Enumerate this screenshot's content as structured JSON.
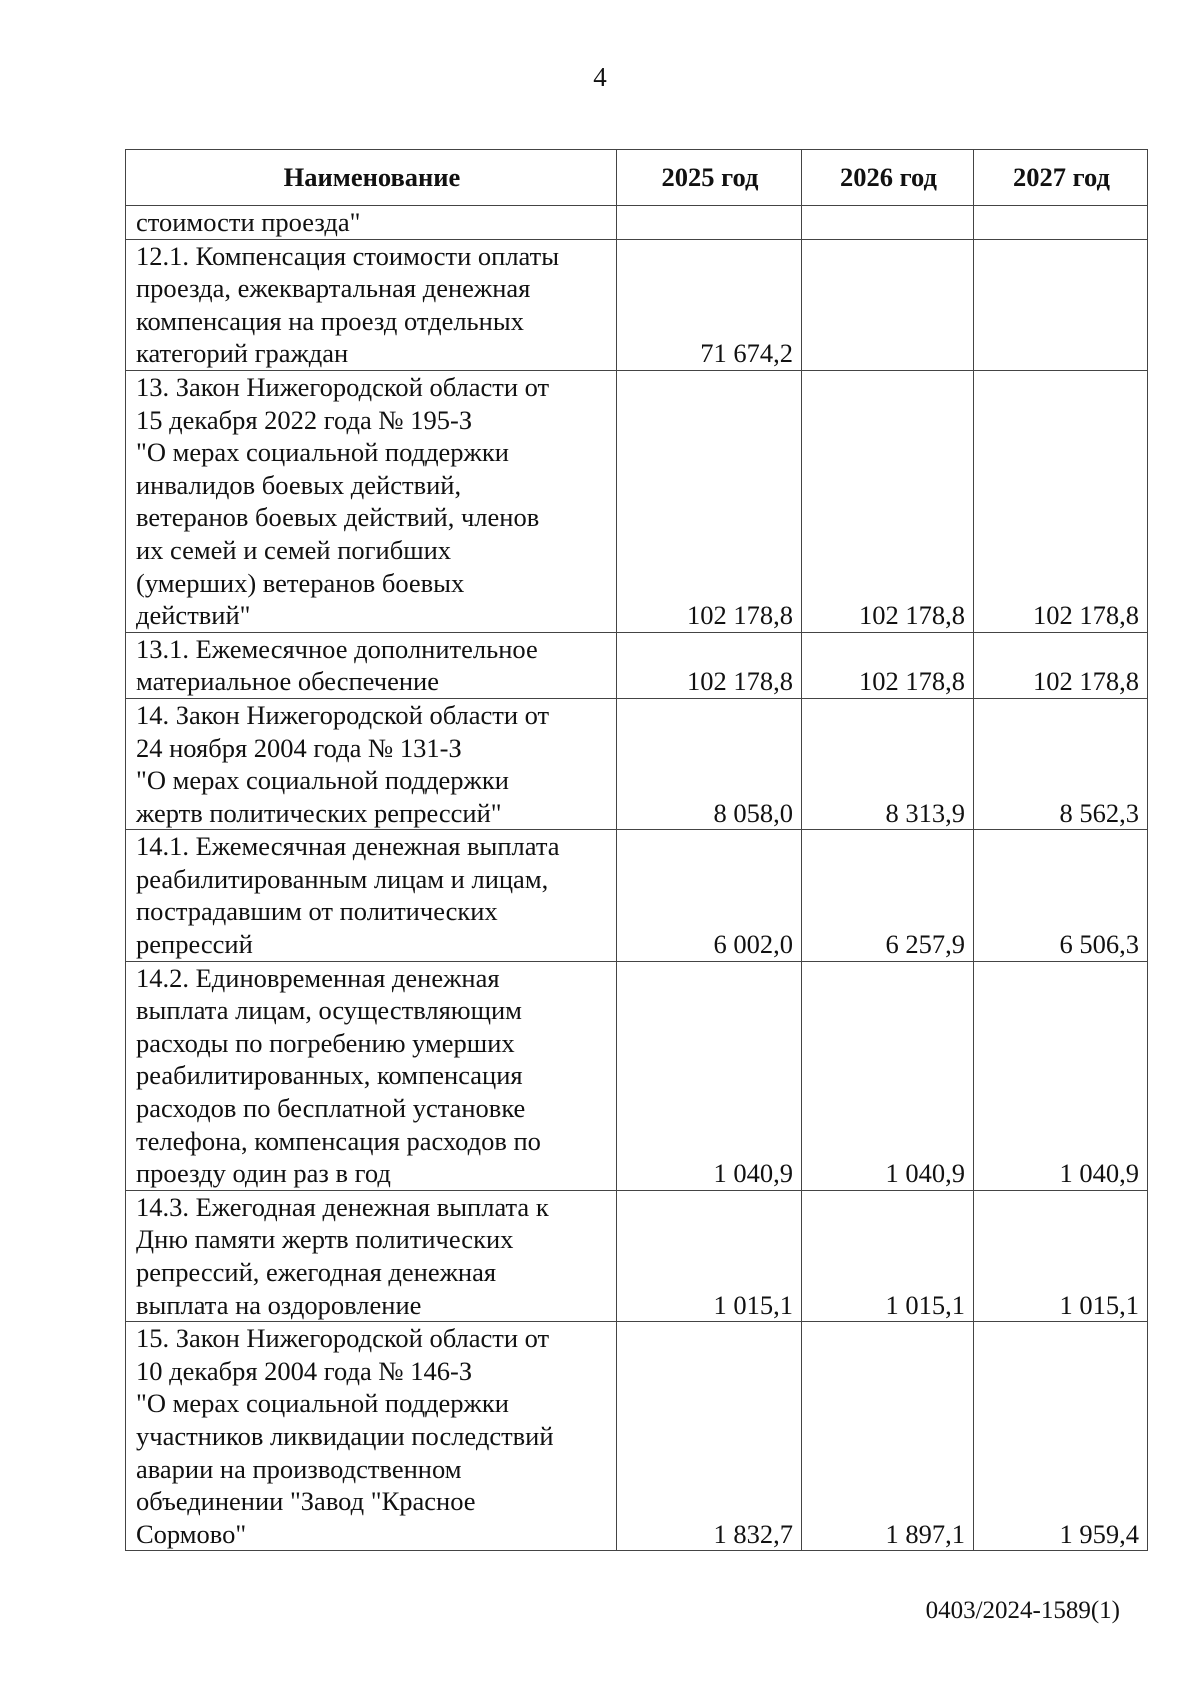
{
  "page_number": "4",
  "table": {
    "headers": [
      "Наименование",
      "2025 год",
      "2026 год",
      "2027 год"
    ],
    "rows": [
      {
        "name_lines": [
          "стоимости проезда\""
        ],
        "values": [
          "",
          "",
          ""
        ]
      },
      {
        "name_lines": [
          "12.1. Компенсация стоимости оплаты",
          "проезда, ежеквартальная денежная",
          "компенсация на проезд отдельных",
          "категорий граждан"
        ],
        "values": [
          "71 674,2",
          "",
          ""
        ]
      },
      {
        "name_lines": [
          "13.  Закон Нижегородской области от",
          "15 декабря 2022 года № 195-З",
          "\"О мерах социальной поддержки",
          "инвалидов боевых действий,",
          "ветеранов боевых действий, членов",
          "их семей и семей погибших",
          "(умерших) ветеранов боевых",
          "действий\""
        ],
        "values": [
          "102 178,8",
          "102 178,8",
          "102 178,8"
        ]
      },
      {
        "name_lines": [
          "13.1. Ежемесячное дополнительное",
          "материальное обеспечение"
        ],
        "values": [
          "102 178,8",
          "102 178,8",
          "102 178,8"
        ]
      },
      {
        "name_lines": [
          "14. Закон Нижегородской области от",
          "24 ноября 2004 года № 131-З",
          "\"О мерах социальной поддержки",
          "жертв политических репрессий\""
        ],
        "values": [
          "8 058,0",
          "8 313,9",
          "8 562,3"
        ]
      },
      {
        "name_lines": [
          "14.1. Ежемесячная денежная выплата",
          "реабилитированным лицам и лицам,",
          "пострадавшим от политических",
          "репрессий"
        ],
        "values": [
          "6 002,0",
          "6 257,9",
          "6 506,3"
        ]
      },
      {
        "name_lines": [
          "14.2. Единовременная денежная",
          "выплата лицам, осуществляющим",
          "расходы по погребению умерших",
          "реабилитированных, компенсация",
          "расходов по бесплатной установке",
          "телефона, компенсация расходов по",
          "проезду один раз в год"
        ],
        "values": [
          "1 040,9",
          "1 040,9",
          "1 040,9"
        ]
      },
      {
        "name_lines": [
          "14.3. Ежегодная денежная выплата к",
          "Дню памяти жертв политических",
          "репрессий, ежегодная денежная",
          "выплата на оздоровление"
        ],
        "values": [
          "1 015,1",
          "1 015,1",
          "1 015,1"
        ]
      },
      {
        "name_lines": [
          "15. Закон Нижегородской области от",
          "10 декабря 2004 года № 146-З",
          "\"О мерах социальной поддержки",
          "участников ликвидации последствий",
          "аварии на производственном",
          "объединении \"Завод \"Красное",
          "Сормово\""
        ],
        "values": [
          "1 832,7",
          "1 897,1",
          "1 959,4"
        ]
      }
    ]
  },
  "footer_code": "0403/2024-1589(1)"
}
